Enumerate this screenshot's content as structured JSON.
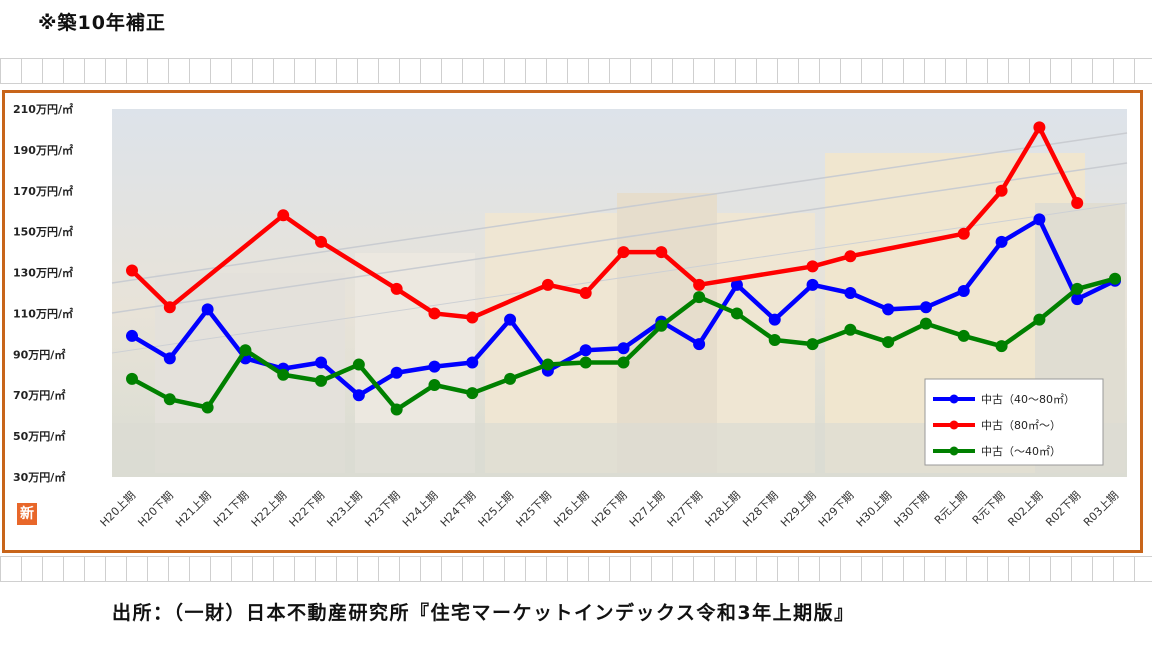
{
  "header": {
    "note": "※築10年補正"
  },
  "footer": {
    "source": "出所：（一財）日本不動産研究所『住宅マーケットインデックス令和3年上期版』"
  },
  "badge": {
    "label": "新"
  },
  "chart_data": {
    "type": "line",
    "title": "",
    "xlabel": "",
    "ylabel": "",
    "ylim": [
      30,
      210
    ],
    "yticks": [
      30,
      50,
      70,
      90,
      110,
      130,
      150,
      170,
      190,
      210
    ],
    "ytick_suffix": "万円/㎡",
    "categories": [
      "H20上期",
      "H20下期",
      "H21上期",
      "H21下期",
      "H22上期",
      "H22下期",
      "H23上期",
      "H23下期",
      "H24上期",
      "H24下期",
      "H25上期",
      "H25下期",
      "H26上期",
      "H26下期",
      "H27上期",
      "H27下期",
      "H28上期",
      "H28下期",
      "H29上期",
      "H29下期",
      "H30上期",
      "H30下期",
      "R元上期",
      "R元下期",
      "R02上期",
      "R02下期",
      "R03上期"
    ],
    "legend_position": "bottom-right",
    "grid": false,
    "series": [
      {
        "name": "中古（40〜80㎡）",
        "color": "#0000ff",
        "values": [
          99,
          88,
          112,
          88,
          83,
          86,
          70,
          81,
          84,
          86,
          107,
          82,
          92,
          93,
          106,
          95,
          124,
          107,
          124,
          120,
          112,
          113,
          121,
          145,
          156,
          117,
          126
        ]
      },
      {
        "name": "中古（80㎡〜）",
        "color": "#ff0000",
        "values": [
          131,
          113,
          null,
          null,
          158,
          145,
          null,
          122,
          110,
          108,
          null,
          124,
          120,
          140,
          140,
          124,
          null,
          null,
          133,
          138,
          null,
          null,
          149,
          170,
          201,
          164,
          null
        ]
      },
      {
        "name": "中古（〜40㎡）",
        "color": "#008000",
        "values": [
          78,
          68,
          64,
          92,
          80,
          77,
          85,
          63,
          75,
          71,
          78,
          85,
          86,
          86,
          104,
          118,
          110,
          97,
          95,
          102,
          96,
          105,
          99,
          94,
          107,
          122,
          127
        ]
      }
    ]
  }
}
